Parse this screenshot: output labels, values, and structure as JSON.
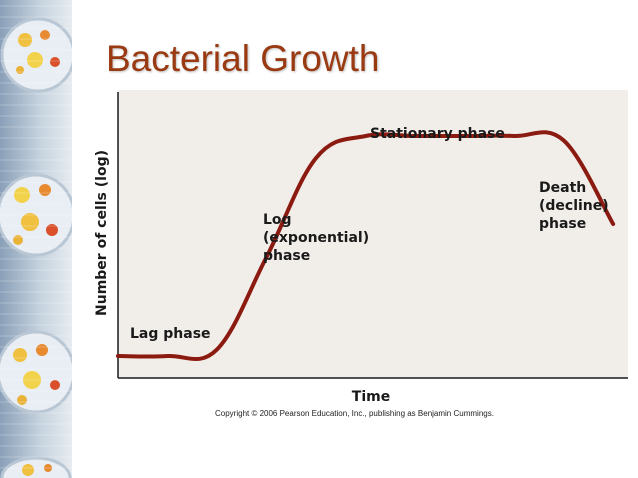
{
  "slide": {
    "title": "Bacterial Growth",
    "copyright": "Copyright © 2006 Pearson Education, Inc., publishing as Benjamin Cummings.",
    "side_image_icon": "petri-dish-strip-icon"
  },
  "colors": {
    "title": "#9a3a12",
    "curve": "#8b1a10",
    "panel": "#f1ede8",
    "axis": "#1a1a1a"
  },
  "chart_data": {
    "type": "line",
    "title": "",
    "xlabel": "Time",
    "ylabel": "Number of cells (log)",
    "grid": false,
    "x": [
      0,
      1,
      2,
      3,
      4,
      5,
      6,
      7,
      8,
      9,
      10
    ],
    "series": [
      {
        "values": [
          0.0,
          0.0,
          0.03,
          0.45,
          0.9,
          1.0,
          1.0,
          1.0,
          1.0,
          0.98,
          0.6
        ]
      }
    ],
    "xlim": [
      0,
      10.3
    ],
    "ylim": [
      -0.1,
      1.2
    ],
    "annotations": [
      {
        "lines": [
          "Lag phase"
        ]
      },
      {
        "lines": [
          "Log",
          "(exponential)",
          "phase"
        ]
      },
      {
        "lines": [
          "Stationary phase"
        ]
      },
      {
        "lines": [
          "Death",
          "(decline)",
          "phase"
        ]
      }
    ]
  }
}
